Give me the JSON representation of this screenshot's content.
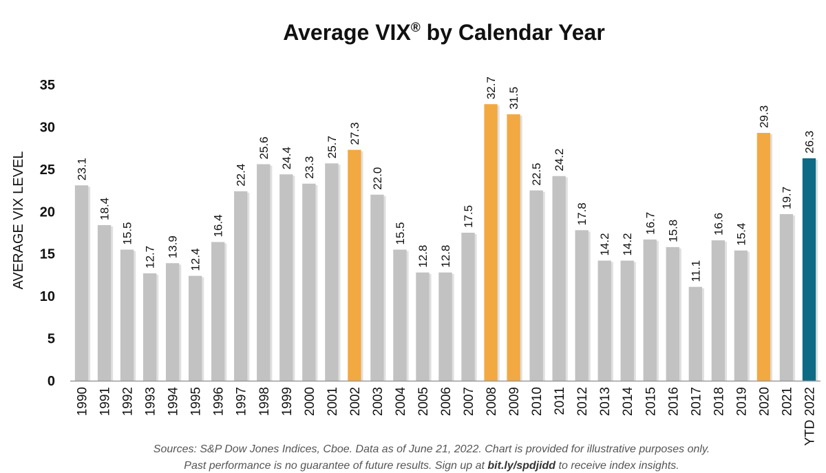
{
  "chart_data": {
    "type": "bar",
    "title": "Average VIX",
    "title_mark": "®",
    "title_suffix": " by Calendar Year",
    "xlabel": "",
    "ylabel": "AVERAGE VIX LEVEL",
    "ylim": [
      0,
      35
    ],
    "yticks": [
      0,
      5,
      10,
      15,
      20,
      25,
      30,
      35
    ],
    "grid": false,
    "legend": "none",
    "categories": [
      "1990",
      "1991",
      "1992",
      "1993",
      "1994",
      "1995",
      "1996",
      "1997",
      "1998",
      "1999",
      "2000",
      "2001",
      "2002",
      "2003",
      "2004",
      "2005",
      "2006",
      "2007",
      "2008",
      "2009",
      "2010",
      "2011",
      "2012",
      "2013",
      "2014",
      "2015",
      "2016",
      "2017",
      "2018",
      "2019",
      "2020",
      "2021",
      "YTD 2022"
    ],
    "values": [
      23.1,
      18.4,
      15.5,
      12.7,
      13.9,
      12.4,
      16.4,
      22.4,
      25.6,
      24.4,
      23.3,
      25.7,
      27.3,
      22.0,
      15.5,
      12.8,
      12.8,
      17.5,
      32.7,
      31.5,
      22.5,
      24.2,
      17.8,
      14.2,
      14.2,
      16.7,
      15.8,
      11.1,
      16.6,
      15.4,
      29.3,
      19.7,
      26.3
    ],
    "data_labels": [
      "23.1",
      "18.4",
      "15.5",
      "12.7",
      "13.9",
      "12.4",
      "16.4",
      "22.4",
      "25.6",
      "24.4",
      "23.3",
      "25.7",
      "27.3",
      "22.0",
      "15.5",
      "12.8",
      "12.8",
      "17.5",
      "32.7",
      "31.5",
      "22.5",
      "24.2",
      "17.8",
      "14.2",
      "14.2",
      "16.7",
      "15.8",
      "11.1",
      "16.6",
      "15.4",
      "29.3",
      "19.7",
      "26.3"
    ],
    "bar_roles": [
      "normal",
      "normal",
      "normal",
      "normal",
      "normal",
      "normal",
      "normal",
      "normal",
      "normal",
      "normal",
      "normal",
      "normal",
      "highlight",
      "normal",
      "normal",
      "normal",
      "normal",
      "normal",
      "highlight",
      "highlight",
      "normal",
      "normal",
      "normal",
      "normal",
      "normal",
      "normal",
      "normal",
      "normal",
      "normal",
      "normal",
      "highlight",
      "normal",
      "current"
    ],
    "colors": {
      "normal": "#c2c2c2",
      "highlight": "#f2a942",
      "current": "#0e6b85",
      "axis": "#9a9a9a"
    }
  },
  "source": {
    "line1": "Sources: S&P Dow Jones Indices, Cboe.  Data as of June 21, 2022.  Chart is provided for illustrative purposes only.",
    "line2_before": "Past performance is no guarantee of future results.  Sign up at ",
    "line2_link": "bit.ly/spdjidd",
    "line2_after": " to receive index insights."
  }
}
